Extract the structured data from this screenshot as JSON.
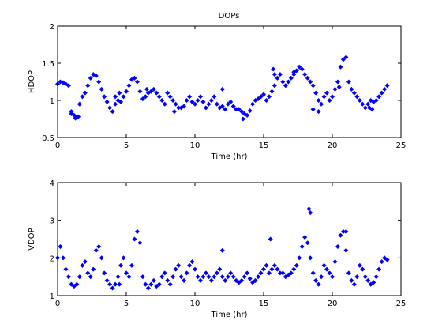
{
  "chart_data": [
    {
      "type": "scatter",
      "title": "DOPs",
      "xlabel": "Time (hr)",
      "ylabel": "HDOP",
      "xlim": [
        0,
        25
      ],
      "ylim": [
        0.5,
        2
      ],
      "xticks": [
        "0",
        "5",
        "10",
        "15",
        "20",
        "25"
      ],
      "yticks": [
        "0.5",
        "1",
        "1.5",
        "2"
      ],
      "grid": false,
      "color": "#0000ff",
      "x": [
        0.0,
        0.2,
        0.4,
        0.6,
        0.8,
        1.0,
        1.2,
        1.4,
        1.6,
        1.8,
        2.0,
        2.2,
        2.4,
        2.6,
        2.8,
        3.0,
        3.2,
        3.4,
        3.6,
        3.8,
        4.0,
        4.2,
        4.4,
        4.6,
        4.8,
        5.0,
        5.2,
        5.4,
        5.6,
        5.8,
        6.0,
        6.2,
        6.4,
        6.6,
        6.8,
        7.0,
        7.2,
        7.4,
        7.6,
        7.8,
        8.0,
        8.2,
        8.4,
        8.6,
        8.8,
        9.0,
        9.2,
        9.4,
        9.6,
        9.8,
        10.0,
        10.2,
        10.4,
        10.6,
        10.8,
        11.0,
        11.2,
        11.4,
        11.6,
        11.8,
        12.0,
        12.2,
        12.4,
        12.6,
        12.8,
        13.0,
        13.2,
        13.4,
        13.6,
        13.8,
        14.0,
        14.2,
        14.4,
        14.6,
        14.8,
        15.0,
        15.2,
        15.4,
        15.6,
        15.8,
        16.0,
        16.2,
        16.4,
        16.6,
        16.8,
        17.0,
        17.2,
        17.4,
        17.6,
        17.8,
        18.0,
        18.2,
        18.4,
        18.6,
        18.8,
        19.0,
        19.2,
        19.4,
        19.6,
        19.8,
        20.0,
        20.2,
        20.4,
        20.6,
        20.8,
        21.0,
        21.2,
        21.4,
        21.6,
        21.8,
        22.0,
        22.2,
        22.4,
        22.6,
        22.8,
        23.0,
        23.2,
        23.4,
        23.6,
        23.8,
        24.0,
        1.0,
        1.3,
        1.5,
        4.2,
        4.5,
        6.5,
        8.5,
        12.0,
        13.5,
        15.7,
        15.8,
        17.2,
        18.6,
        19.0,
        20.5,
        22.7,
        22.9
      ],
      "y": [
        1.22,
        1.25,
        1.24,
        1.22,
        1.2,
        0.85,
        0.8,
        0.78,
        0.95,
        1.05,
        1.1,
        1.2,
        1.3,
        1.35,
        1.33,
        1.25,
        1.15,
        1.05,
        0.98,
        0.9,
        0.85,
        0.95,
        1.0,
        0.98,
        1.05,
        1.12,
        1.2,
        1.28,
        1.3,
        1.25,
        1.12,
        1.02,
        1.05,
        1.1,
        1.12,
        1.15,
        1.1,
        1.05,
        1.0,
        0.95,
        1.1,
        1.05,
        1.0,
        0.95,
        0.9,
        0.9,
        0.92,
        1.0,
        1.05,
        0.98,
        0.95,
        1.0,
        1.05,
        0.98,
        0.9,
        0.95,
        1.0,
        1.05,
        0.95,
        0.9,
        0.92,
        0.88,
        0.95,
        0.98,
        0.92,
        0.88,
        0.88,
        0.85,
        0.82,
        0.8,
        0.86,
        0.95,
        1.0,
        1.02,
        1.05,
        1.08,
        1.0,
        1.05,
        1.12,
        1.2,
        1.3,
        1.35,
        1.25,
        1.2,
        1.25,
        1.3,
        1.35,
        1.4,
        1.45,
        1.42,
        1.35,
        1.3,
        1.25,
        1.2,
        1.1,
        1.0,
        0.95,
        1.05,
        1.1,
        1.0,
        1.05,
        1.15,
        1.25,
        1.45,
        1.55,
        1.58,
        1.25,
        1.15,
        1.1,
        1.05,
        1.0,
        0.95,
        0.9,
        0.95,
        1.0,
        0.98,
        1.0,
        1.05,
        1.1,
        1.15,
        1.2,
        0.82,
        0.76,
        0.78,
        1.05,
        1.1,
        1.15,
        0.85,
        1.15,
        0.75,
        1.42,
        1.35,
        1.38,
        0.88,
        0.85,
        1.18,
        0.9,
        0.88
      ]
    },
    {
      "type": "scatter",
      "title": "",
      "xlabel": "Time (hr)",
      "ylabel": "VDOP",
      "xlim": [
        0,
        25
      ],
      "ylim": [
        1,
        4
      ],
      "xticks": [
        "0",
        "5",
        "10",
        "15",
        "20",
        "25"
      ],
      "yticks": [
        "1",
        "2",
        "3",
        "4"
      ],
      "grid": false,
      "color": "#0000ff",
      "x": [
        0.0,
        0.2,
        0.4,
        0.6,
        0.8,
        1.0,
        1.2,
        1.4,
        1.6,
        1.8,
        2.0,
        2.2,
        2.4,
        2.6,
        2.8,
        3.0,
        3.2,
        3.4,
        3.6,
        3.8,
        4.0,
        4.2,
        4.4,
        4.6,
        4.8,
        5.0,
        5.2,
        5.4,
        5.6,
        5.8,
        6.0,
        6.2,
        6.4,
        6.6,
        6.8,
        7.0,
        7.2,
        7.4,
        7.6,
        7.8,
        8.0,
        8.2,
        8.4,
        8.6,
        8.8,
        9.0,
        9.2,
        9.4,
        9.6,
        9.8,
        10.0,
        10.2,
        10.4,
        10.6,
        10.8,
        11.0,
        11.2,
        11.4,
        11.6,
        11.8,
        12.0,
        12.2,
        12.4,
        12.6,
        12.8,
        13.0,
        13.2,
        13.4,
        13.6,
        13.8,
        14.0,
        14.2,
        14.4,
        14.6,
        14.8,
        15.0,
        15.2,
        15.4,
        15.6,
        15.8,
        16.0,
        16.2,
        16.4,
        16.6,
        16.8,
        17.0,
        17.2,
        17.4,
        17.6,
        17.8,
        18.0,
        18.2,
        18.4,
        18.6,
        18.8,
        19.0,
        19.2,
        19.4,
        19.6,
        19.8,
        20.0,
        20.2,
        20.4,
        20.6,
        20.8,
        21.0,
        21.2,
        21.4,
        21.6,
        21.8,
        22.0,
        22.2,
        22.4,
        22.6,
        22.8,
        23.0,
        23.2,
        23.4,
        23.6,
        23.8,
        24.0,
        18.3,
        18.4,
        15.5,
        21.0,
        12.0,
        4.5
      ],
      "y": [
        2.0,
        2.3,
        2.0,
        1.7,
        1.5,
        1.3,
        1.25,
        1.3,
        1.5,
        1.8,
        1.9,
        1.6,
        1.5,
        1.7,
        2.2,
        2.3,
        2.0,
        1.6,
        1.4,
        1.3,
        1.2,
        1.3,
        1.5,
        1.8,
        2.0,
        1.6,
        1.5,
        1.8,
        2.5,
        2.7,
        2.4,
        1.5,
        1.3,
        1.2,
        1.3,
        1.4,
        1.25,
        1.3,
        1.5,
        1.6,
        1.4,
        1.3,
        1.5,
        1.7,
        1.8,
        1.5,
        1.4,
        1.6,
        1.8,
        1.9,
        1.7,
        1.5,
        1.4,
        1.5,
        1.6,
        1.5,
        1.4,
        1.5,
        1.6,
        1.7,
        1.5,
        1.4,
        1.5,
        1.6,
        1.5,
        1.4,
        1.35,
        1.4,
        1.5,
        1.6,
        1.45,
        1.35,
        1.4,
        1.5,
        1.6,
        1.7,
        1.8,
        1.6,
        1.7,
        1.8,
        1.7,
        1.6,
        1.6,
        1.5,
        1.55,
        1.6,
        1.7,
        1.8,
        2.0,
        2.3,
        2.55,
        2.4,
        2.0,
        1.6,
        1.4,
        1.3,
        1.5,
        1.8,
        1.7,
        1.6,
        1.5,
        1.9,
        2.3,
        2.6,
        2.7,
        2.2,
        1.6,
        1.4,
        1.3,
        1.5,
        1.8,
        1.7,
        1.5,
        1.4,
        1.3,
        1.35,
        1.5,
        1.7,
        1.9,
        2.0,
        1.95,
        3.3,
        3.2,
        2.5,
        2.7,
        2.2,
        1.3
      ]
    }
  ]
}
